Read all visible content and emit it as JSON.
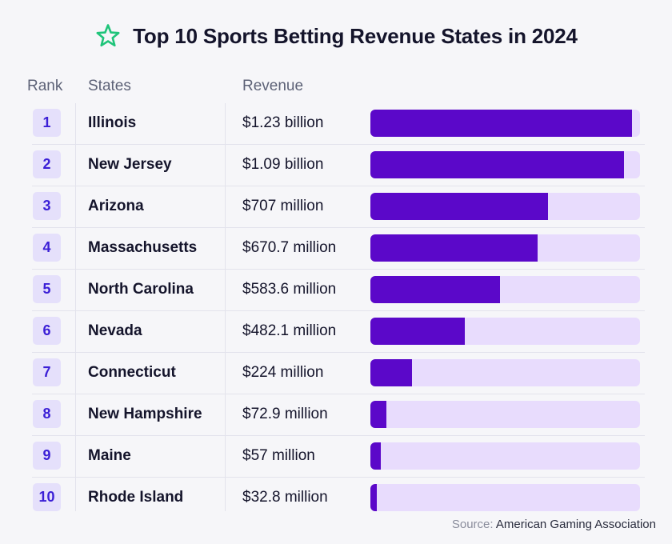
{
  "title": "Top 10 Sports Betting Revenue States in 2024",
  "icon": "star-icon",
  "colors": {
    "accent": "#1fc47a",
    "bar": "#5b08c9",
    "track": "#e8dcfd",
    "rank_bg": "#e5e0fb",
    "rank_text": "#3b1fd6"
  },
  "headers": {
    "rank": "Rank",
    "states": "States",
    "revenue": "Revenue"
  },
  "source": {
    "label": "Source:",
    "name": "American Gaming Association"
  },
  "chart_data": {
    "type": "bar",
    "orientation": "horizontal",
    "title": "Top 10 Sports Betting Revenue States in 2024",
    "categories": [
      "Illinois",
      "New Jersey",
      "Arizona",
      "Massachusetts",
      "North Carolina",
      "Nevada",
      "Connecticut",
      "New Hampshire",
      "Maine",
      "Rhode Island"
    ],
    "ranks": [
      "1",
      "2",
      "3",
      "4",
      "5",
      "6",
      "7",
      "8",
      "9",
      "10"
    ],
    "value_labels": [
      "$1.23 billion",
      "$1.09 billion",
      "$707 million",
      "$670.7 million",
      "$583.6 million",
      "$482.1 million",
      "$224 million",
      "$72.9 million",
      "$57 million",
      "$32.8 million"
    ],
    "values_millions": [
      1230,
      1090,
      707,
      670.7,
      583.6,
      482.1,
      224,
      72.9,
      57,
      32.8
    ],
    "bar_fill_fraction": [
      0.97,
      0.94,
      0.66,
      0.62,
      0.48,
      0.35,
      0.155,
      0.06,
      0.04,
      0.025
    ]
  }
}
